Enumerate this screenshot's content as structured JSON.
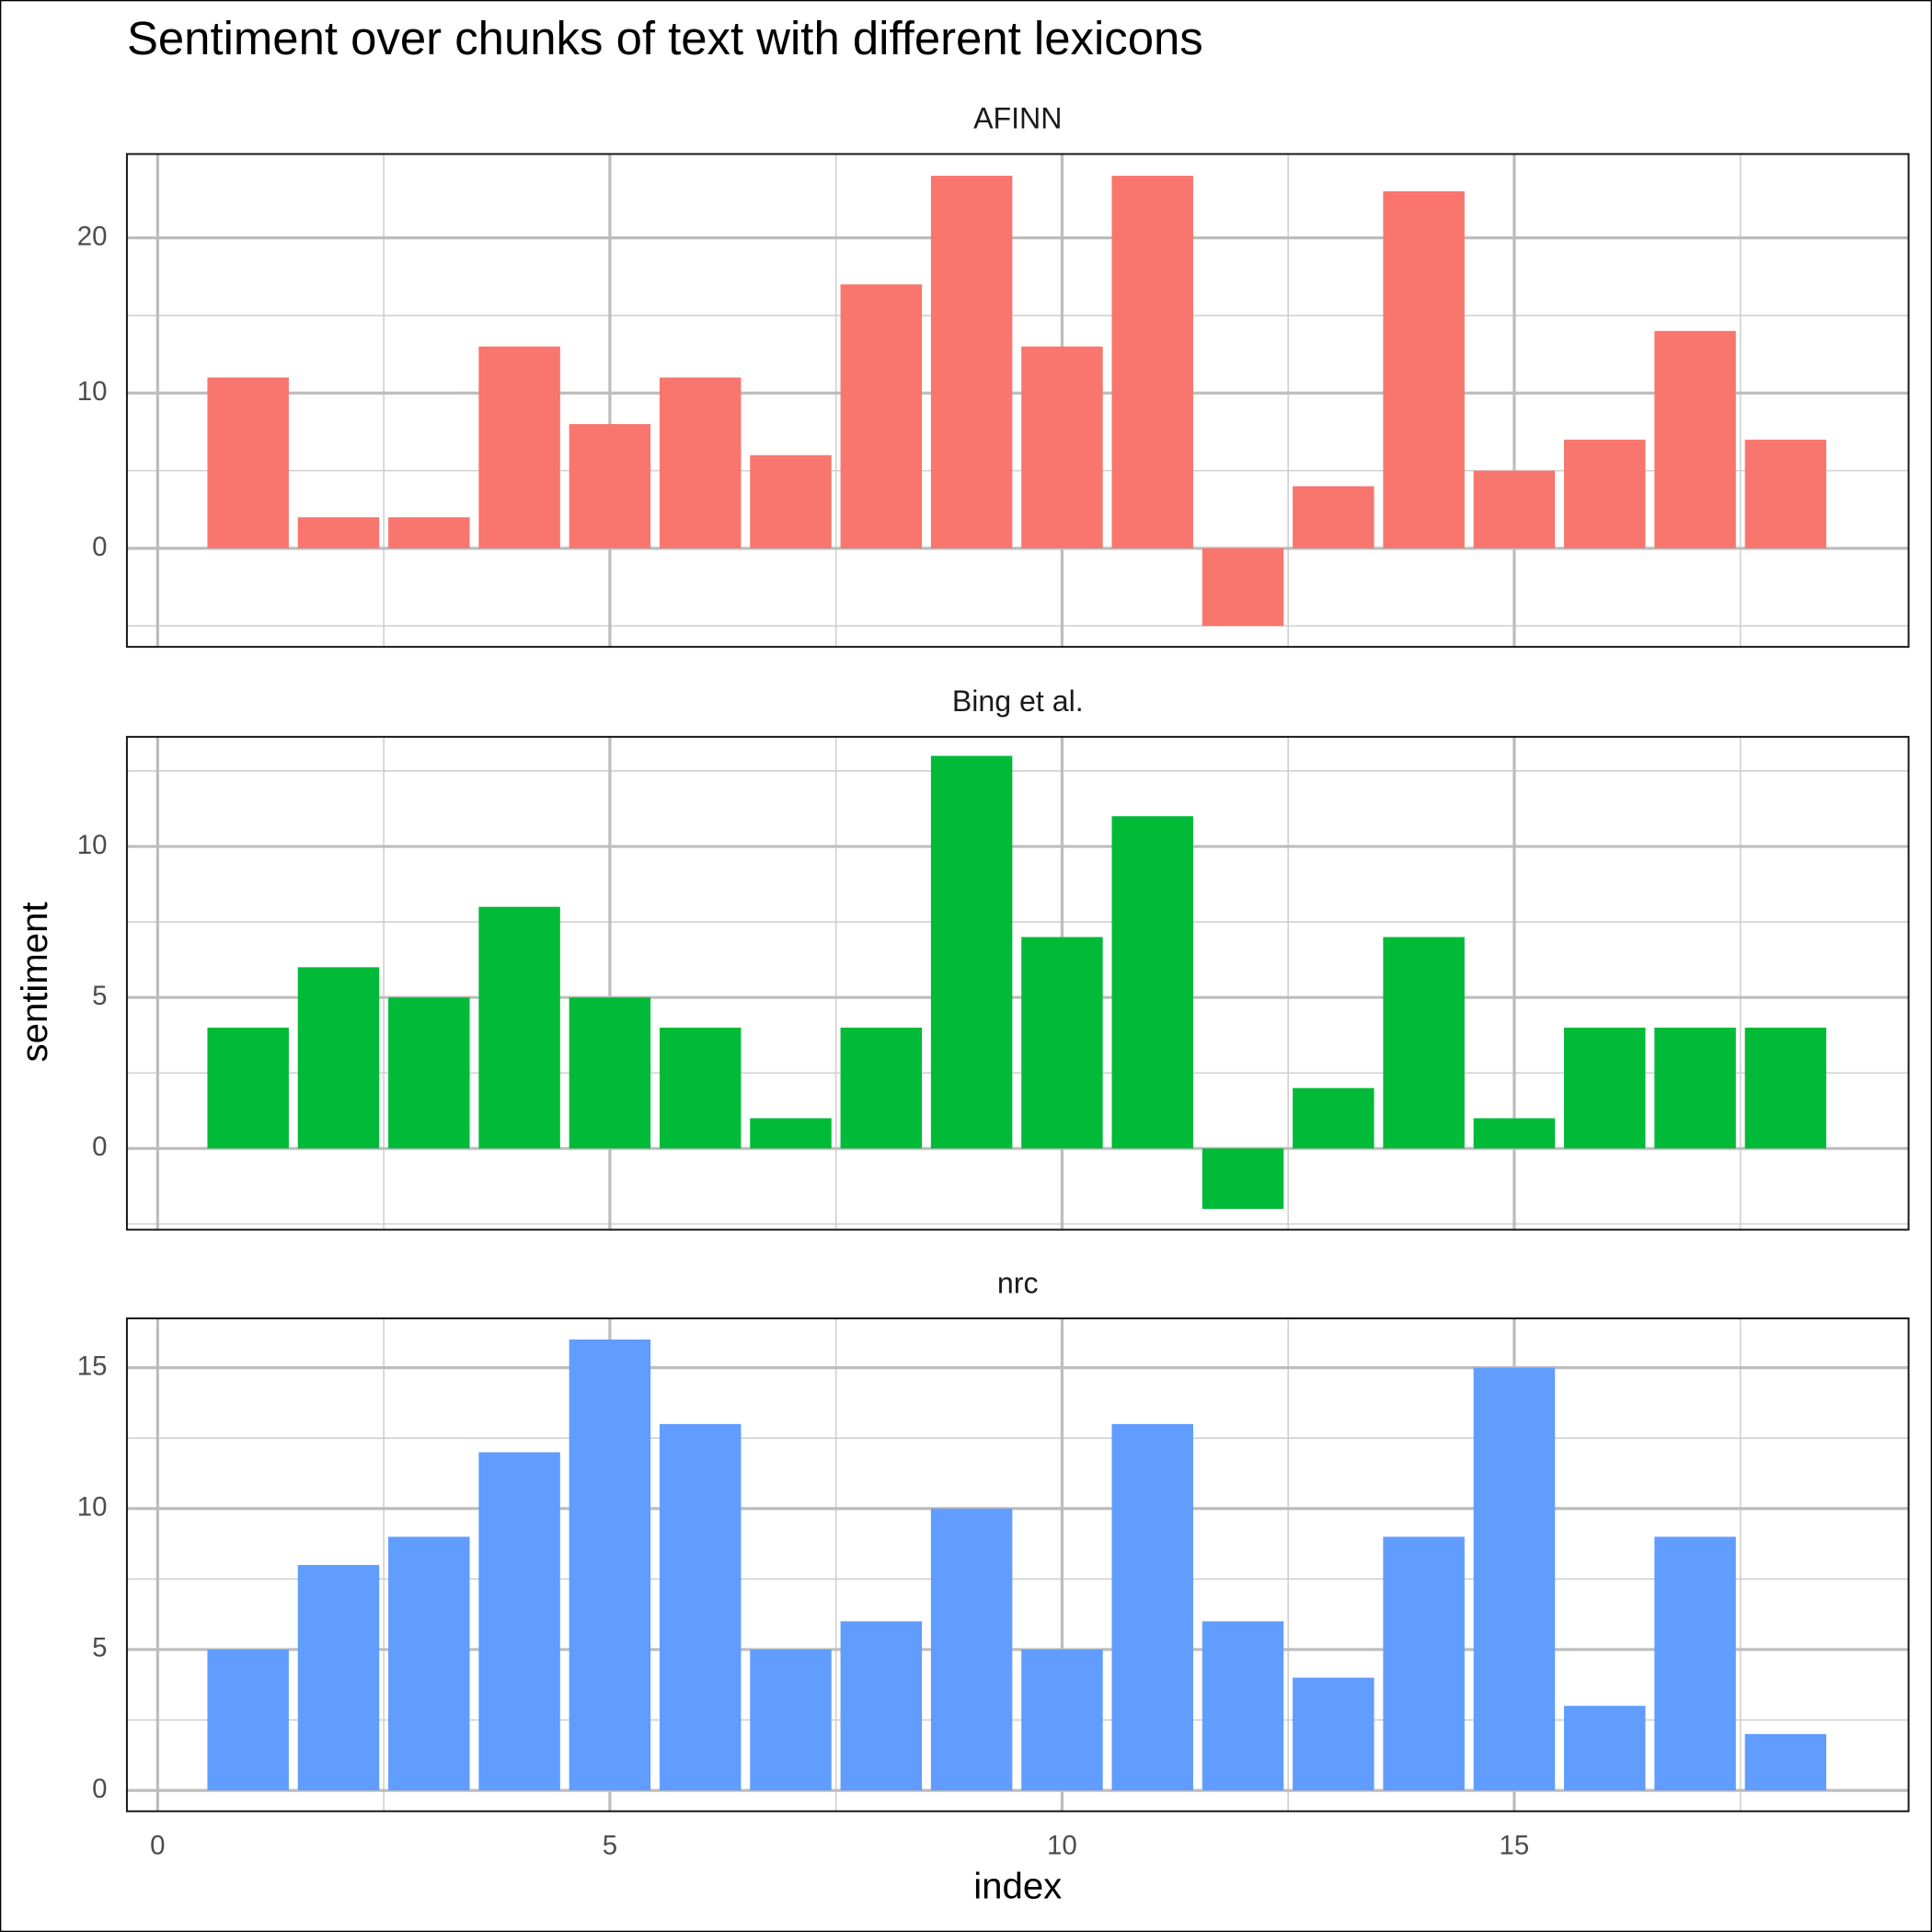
{
  "title": "Sentiment over chunks of text with different lexicons",
  "x_label": "index",
  "y_label": "sentiment",
  "chart_data": [
    {
      "type": "bar",
      "title": "AFINN",
      "color": "#F8766D",
      "x": [
        1,
        2,
        3,
        4,
        5,
        6,
        7,
        8,
        9,
        10,
        11,
        12,
        13,
        14,
        15,
        16,
        17,
        18
      ],
      "values": [
        11,
        2,
        2,
        13,
        8,
        11,
        6,
        17,
        24,
        13,
        24,
        -5,
        4,
        23,
        5,
        7,
        14,
        7
      ],
      "xlim": [
        -0.34,
        19.36
      ],
      "xticks": [
        0,
        5,
        10,
        15
      ],
      "minor_xticks": [
        2.5,
        7.5,
        12.5,
        17.5
      ],
      "ylim": [
        -6.35,
        25.4
      ],
      "yticks": [
        0,
        10,
        20
      ],
      "minor_yticks": [
        -5,
        5,
        15
      ],
      "grid": true,
      "show_xtick_labels": false
    },
    {
      "type": "bar",
      "title": "Bing et al.",
      "color": "#00BA38",
      "x": [
        1,
        2,
        3,
        4,
        5,
        6,
        7,
        8,
        9,
        10,
        11,
        12,
        13,
        14,
        15,
        16,
        17,
        18
      ],
      "values": [
        4,
        6,
        5,
        8,
        5,
        4,
        1,
        4,
        13,
        7,
        11,
        -2,
        2,
        7,
        1,
        4,
        4,
        4
      ],
      "xlim": [
        -0.34,
        19.36
      ],
      "xticks": [
        0,
        5,
        10,
        15
      ],
      "minor_xticks": [
        2.5,
        7.5,
        12.5,
        17.5
      ],
      "ylim": [
        -2.69,
        13.63
      ],
      "yticks": [
        0,
        5,
        10
      ],
      "minor_yticks": [
        -2.5,
        2.5,
        7.5,
        12.5
      ],
      "grid": true,
      "show_xtick_labels": false
    },
    {
      "type": "bar",
      "title": "nrc",
      "color": "#619CFF",
      "x": [
        1,
        2,
        3,
        4,
        5,
        6,
        7,
        8,
        9,
        10,
        11,
        12,
        13,
        14,
        15,
        16,
        17,
        18
      ],
      "values": [
        5,
        8,
        9,
        12,
        16,
        13,
        5,
        6,
        10,
        5,
        13,
        6,
        4,
        9,
        15,
        3,
        9,
        2
      ],
      "xlim": [
        -0.34,
        19.36
      ],
      "xticks": [
        0,
        5,
        10,
        15
      ],
      "minor_xticks": [
        2.5,
        7.5,
        12.5,
        17.5
      ],
      "ylim": [
        -0.74,
        16.75
      ],
      "yticks": [
        0,
        5,
        10,
        15
      ],
      "minor_yticks": [
        2.5,
        7.5,
        12.5
      ],
      "grid": true,
      "show_xtick_labels": true
    }
  ]
}
